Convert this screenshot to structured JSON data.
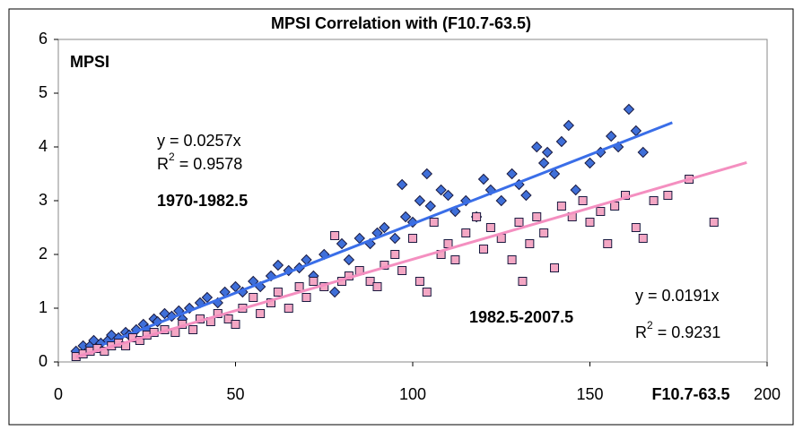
{
  "chart_data": {
    "type": "scatter",
    "title": "MPSI Correlation with (F10.7-63.5)",
    "y_label": "MPSI",
    "x_label": "F10.7-63.5",
    "xlim": [
      0,
      200
    ],
    "xticks": [
      0,
      50,
      100,
      150,
      200
    ],
    "ylim": [
      0,
      6
    ],
    "yticks": [
      0,
      1,
      2,
      3,
      4,
      5,
      6
    ],
    "grid": false,
    "series": [
      {
        "name": "1970-1982.5",
        "color": "#3f6fd8",
        "name_color": "#1f1fd0",
        "marker": "diamond",
        "line_color": "#3a6ee8",
        "x": [
          5,
          7,
          9,
          10,
          12,
          14,
          15,
          17,
          19,
          20,
          22,
          24,
          25,
          27,
          28,
          30,
          32,
          34,
          35,
          37,
          40,
          42,
          45,
          47,
          50,
          52,
          55,
          57,
          60,
          62,
          65,
          68,
          70,
          72,
          75,
          78,
          80,
          82,
          85,
          88,
          90,
          92,
          95,
          97,
          98,
          100,
          102,
          104,
          105,
          108,
          110,
          112,
          115,
          118,
          120,
          122,
          125,
          128,
          130,
          132,
          135,
          137,
          138,
          140,
          142,
          144,
          146,
          150,
          153,
          156,
          158,
          161,
          163,
          165
        ],
        "values": [
          0.2,
          0.3,
          0.3,
          0.4,
          0.35,
          0.4,
          0.5,
          0.45,
          0.55,
          0.5,
          0.6,
          0.7,
          0.6,
          0.8,
          0.75,
          0.9,
          0.85,
          0.95,
          0.8,
          1.0,
          1.1,
          1.2,
          1.1,
          1.3,
          1.4,
          1.3,
          1.5,
          1.4,
          1.6,
          1.8,
          1.7,
          1.75,
          1.9,
          1.6,
          2.0,
          1.3,
          2.2,
          1.9,
          2.3,
          2.2,
          2.4,
          2.5,
          2.3,
          3.3,
          2.7,
          2.6,
          3.0,
          3.5,
          2.9,
          3.2,
          3.1,
          2.8,
          3.0,
          2.7,
          3.4,
          3.2,
          3.0,
          3.5,
          3.3,
          3.1,
          4.0,
          3.7,
          3.9,
          3.5,
          4.1,
          4.4,
          3.2,
          3.7,
          3.9,
          4.2,
          4.0,
          4.7,
          4.3,
          3.9
        ],
        "trendline": {
          "slope": 0.0257,
          "label": "y = 0.0257x",
          "r2_base": "R",
          "r2_sup": "2",
          "r2_rest": " = 0.9578"
        }
      },
      {
        "name": "1982.5-2007.5",
        "color": "#f4a7c4",
        "name_color": "#ee22cc",
        "marker": "square",
        "line_color": "#f48fc0",
        "x": [
          5,
          7,
          9,
          11,
          13,
          15,
          17,
          19,
          21,
          23,
          25,
          27,
          30,
          33,
          35,
          38,
          40,
          43,
          45,
          48,
          50,
          52,
          55,
          57,
          60,
          62,
          65,
          68,
          70,
          72,
          75,
          78,
          80,
          82,
          85,
          88,
          90,
          92,
          95,
          97,
          100,
          102,
          104,
          106,
          108,
          110,
          112,
          115,
          118,
          120,
          122,
          125,
          128,
          130,
          131,
          133,
          135,
          137,
          140,
          142,
          145,
          148,
          150,
          153,
          155,
          157,
          160,
          163,
          165,
          168,
          172,
          178,
          185
        ],
        "values": [
          0.1,
          0.15,
          0.2,
          0.25,
          0.2,
          0.3,
          0.35,
          0.3,
          0.45,
          0.4,
          0.5,
          0.55,
          0.6,
          0.55,
          0.7,
          0.6,
          0.8,
          0.75,
          0.9,
          0.8,
          0.7,
          1.0,
          1.2,
          0.9,
          1.1,
          1.3,
          1.0,
          1.4,
          1.2,
          1.5,
          1.4,
          2.35,
          1.5,
          1.6,
          1.7,
          1.5,
          1.4,
          1.8,
          2.0,
          1.7,
          2.3,
          1.5,
          1.3,
          2.6,
          2.0,
          2.2,
          1.9,
          2.4,
          2.7,
          2.1,
          2.5,
          2.3,
          1.9,
          2.6,
          1.5,
          2.2,
          2.7,
          2.4,
          1.75,
          2.9,
          2.7,
          3.0,
          2.6,
          2.8,
          2.2,
          2.9,
          3.1,
          2.5,
          2.3,
          3.0,
          3.1,
          3.4,
          2.6
        ],
        "trendline": {
          "slope": 0.0191,
          "label": "y = 0.0191x",
          "r2_base": "R",
          "r2_sup": "2",
          "r2_rest": " = 0.9231"
        }
      }
    ]
  }
}
